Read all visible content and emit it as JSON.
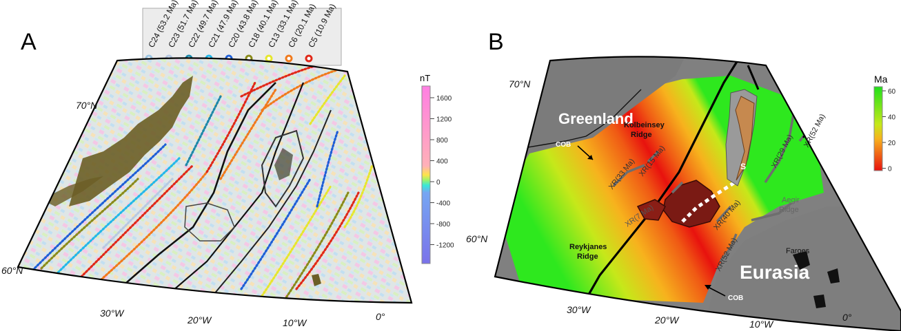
{
  "panels": {
    "a": {
      "letter": "A",
      "legend": [
        {
          "label": "C24 (53.2 Ma)",
          "color": "#9dc6e3"
        },
        {
          "label": "C23 (51.7 Ma)",
          "color": "#b7c9e2"
        },
        {
          "label": "C22 (49.7 Ma)",
          "color": "#1e88a8"
        },
        {
          "label": "C21 (47.9 Ma)",
          "color": "#24b7e8"
        },
        {
          "label": "C20 (43.8 Ma)",
          "color": "#1f5fd6"
        },
        {
          "label": "C18 (40.1 Ma)",
          "color": "#8a8a1a"
        },
        {
          "label": "C13 (33.1 Ma)",
          "color": "#e6e62e"
        },
        {
          "label": "C6 (20.1 Ma)",
          "color": "#f07a1c"
        },
        {
          "label": "C5 (10.9 Ma)",
          "color": "#e02818"
        }
      ],
      "colorbar": {
        "unit": "nT",
        "ticks": [
          "1600",
          "1200",
          "800",
          "400",
          "0",
          "-400",
          "-800",
          "-1200"
        ]
      },
      "lat_labels": [
        "70°N",
        "60°N"
      ],
      "lon_labels": [
        "30°W",
        "20°W",
        "10°W",
        "0°"
      ]
    },
    "b": {
      "letter": "B",
      "colorbar": {
        "unit": "Ma",
        "ticks": [
          "60",
          "40",
          "20",
          "0"
        ]
      },
      "lat_labels": [
        "70°N",
        "60°N"
      ],
      "lon_labels": [
        "30°W",
        "20°W",
        "10°W",
        "0°"
      ],
      "labels": {
        "greenland": "Greenland",
        "eurasia": "Eurasia",
        "kolbeinsey": [
          "Kolbeinsey",
          "Ridge"
        ],
        "reykjanes": [
          "Reykjanes",
          "Ridge"
        ],
        "aegir": [
          "Aegir",
          "Ridge"
        ],
        "cob1": "COB",
        "cob2": "COB",
        "faroes": "Faroes",
        "s": "S",
        "xr33": "XR(33 Ma)",
        "xr15": "XR(15 Ma)",
        "xr7": "XR(7 Ma)",
        "xr40": "XR(40 Ma)",
        "xr29": "XR(29 Ma)",
        "xr52a": "XR(52 Ma)",
        "xr52b": "XR(52 Ma)"
      },
      "colors": {
        "land": "#808080",
        "young": "#e8120e",
        "mid": "#f7b21d",
        "old": "#2ee81e"
      }
    }
  }
}
